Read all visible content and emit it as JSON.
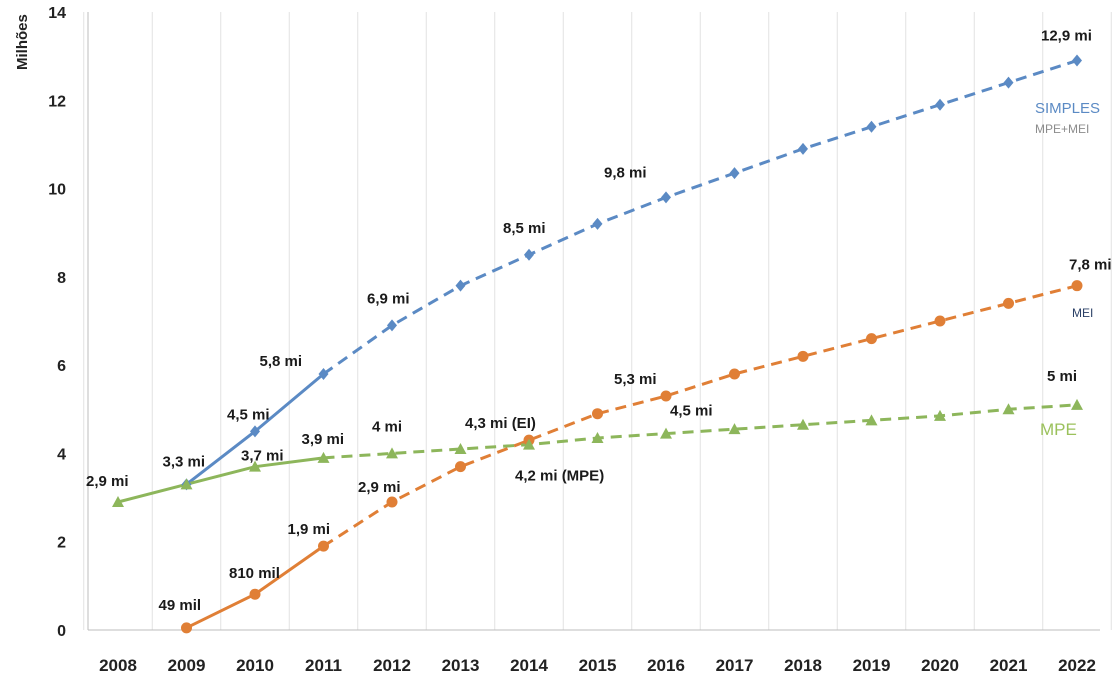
{
  "chart_data": {
    "type": "line",
    "ylabel": "Milhões",
    "ylim": [
      0,
      14
    ],
    "yticks": [
      0,
      2,
      4,
      6,
      8,
      10,
      12,
      14
    ],
    "x": [
      "2008",
      "2009",
      "2010",
      "2011",
      "2012",
      "2013",
      "2014",
      "2015",
      "2016",
      "2017",
      "2018",
      "2019",
      "2020",
      "2021",
      "2022"
    ],
    "grid": "vertical",
    "series": [
      {
        "name": "SIMPLES",
        "subname": "MPE+MEI",
        "color": "#5b8ac4",
        "marker": "diamond",
        "solid_until": "2011",
        "points": [
          [
            "2009",
            3.3
          ],
          [
            "2010",
            4.5
          ],
          [
            "2011",
            5.8
          ],
          [
            "2012",
            6.9
          ],
          [
            "2013",
            7.8
          ],
          [
            "2014",
            8.5
          ],
          [
            "2015",
            9.2
          ],
          [
            "2016",
            9.8
          ],
          [
            "2017",
            10.35
          ],
          [
            "2018",
            10.9
          ],
          [
            "2019",
            11.4
          ],
          [
            "2020",
            11.9
          ],
          [
            "2021",
            12.4
          ],
          [
            "2022",
            12.9
          ]
        ]
      },
      {
        "name": "MEI",
        "color": "#e07f36",
        "marker": "circle",
        "solid_until": "2011",
        "points": [
          [
            "2009",
            0.049
          ],
          [
            "2010",
            0.81
          ],
          [
            "2011",
            1.9
          ],
          [
            "2012",
            2.9
          ],
          [
            "2013",
            3.7
          ],
          [
            "2014",
            4.3
          ],
          [
            "2015",
            4.9
          ],
          [
            "2016",
            5.3
          ],
          [
            "2017",
            5.8
          ],
          [
            "2018",
            6.2
          ],
          [
            "2019",
            6.6
          ],
          [
            "2020",
            7.0
          ],
          [
            "2021",
            7.4
          ],
          [
            "2022",
            7.8
          ]
        ]
      },
      {
        "name": "MPE",
        "color": "#8db65b",
        "marker": "triangle",
        "solid_until": "2011",
        "points": [
          [
            "2008",
            2.9
          ],
          [
            "2009",
            3.3
          ],
          [
            "2010",
            3.7
          ],
          [
            "2011",
            3.9
          ],
          [
            "2012",
            4.0
          ],
          [
            "2013",
            4.1
          ],
          [
            "2014",
            4.2
          ],
          [
            "2015",
            4.35
          ],
          [
            "2016",
            4.45
          ],
          [
            "2017",
            4.55
          ],
          [
            "2018",
            4.65
          ],
          [
            "2019",
            4.75
          ],
          [
            "2020",
            4.85
          ],
          [
            "2021",
            5.0
          ],
          [
            "2022",
            5.1
          ]
        ]
      }
    ],
    "annotations": [
      {
        "text": "2,9 mi",
        "x": "2008",
        "y": 2.9
      },
      {
        "text": "3,3 mi",
        "x": "2009",
        "y": 3.3
      },
      {
        "text": "3,7 mi",
        "x": "2010",
        "y": 3.7
      },
      {
        "text": "3,9 mi",
        "x": "2011",
        "y": 3.9
      },
      {
        "text": "4 mi",
        "x": "2012",
        "y": 4.0
      },
      {
        "text": "4,5 mi",
        "x": "2010",
        "y": 4.5
      },
      {
        "text": "5,8 mi",
        "x": "2011",
        "y": 5.8
      },
      {
        "text": "6,9 mi",
        "x": "2012",
        "y": 6.9
      },
      {
        "text": "8,5 mi",
        "x": "2014",
        "y": 8.5
      },
      {
        "text": "9,8 mi",
        "x": "2016",
        "y": 9.8
      },
      {
        "text": "12,9 mi",
        "x": "2022",
        "y": 12.9
      },
      {
        "text": "49 mil",
        "x": "2009",
        "y": 0.049
      },
      {
        "text": "810 mil",
        "x": "2010",
        "y": 0.81
      },
      {
        "text": "1,9 mi",
        "x": "2011",
        "y": 1.9
      },
      {
        "text": "2,9 mi",
        "x": "2012",
        "y": 2.9
      },
      {
        "text": "4,3 mi (EI)",
        "x": "2014",
        "y": 4.3
      },
      {
        "text": "4,2 mi (MPE)",
        "x": "2014",
        "y": 4.2
      },
      {
        "text": "5,3 mi",
        "x": "2016",
        "y": 5.3
      },
      {
        "text": "4,5 mi",
        "x": "2016",
        "y": 4.45
      },
      {
        "text": "7,8 mi",
        "x": "2022",
        "y": 7.8
      },
      {
        "text": "5 mi",
        "x": "2022",
        "y": 5.1
      }
    ]
  },
  "legend": {
    "simples": "SIMPLES",
    "simples_sub": "MPE+MEI",
    "mei": "MEI",
    "mpe": "MPE"
  }
}
